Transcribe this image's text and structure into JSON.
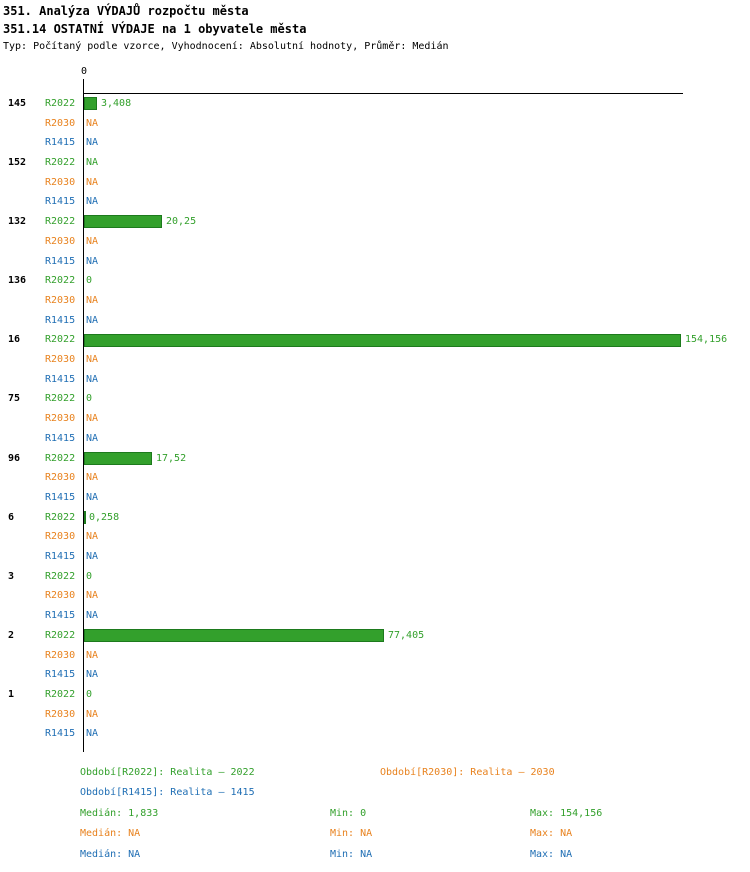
{
  "header": {
    "title_line1": "351. Analýza VÝDAJŮ rozpočtu města",
    "title_line2": "351.14 OSTATNÍ VÝDAJE na 1 obyvatele města",
    "meta_line": "Typ: Počítaný podle vzorce, Vyhodnocení: Absolutní hodnoty, Průměr: Medián"
  },
  "colors": {
    "green": "#33a02c",
    "green_dark": "#1d7a1d",
    "orange": "#e8821e",
    "blue": "#1f6eb4",
    "axis": "#000000",
    "text": "#000000",
    "background": "#ffffff"
  },
  "chart_data": {
    "type": "bar",
    "orientation": "horizontal",
    "title": "351.14 OSTATNÍ VÝDAJE na 1 obyvatele města",
    "value_axis": {
      "zero_label": "0",
      "min": 0,
      "max_value_shown": 154.156
    },
    "grid": false,
    "series": [
      {
        "label": "R2022",
        "color": "green"
      },
      {
        "label": "R2030",
        "color": "orange"
      },
      {
        "label": "R1415",
        "color": "blue"
      }
    ],
    "groups": [
      {
        "label": "145",
        "bars": [
          {
            "series": "R2022",
            "color": "green",
            "value": 3.408,
            "display": "3,408"
          },
          {
            "series": "R2030",
            "color": "orange",
            "value": null,
            "display": "NA"
          },
          {
            "series": "R1415",
            "color": "blue",
            "value": null,
            "display": "NA"
          }
        ]
      },
      {
        "label": "152",
        "bars": [
          {
            "series": "R2022",
            "color": "green",
            "value": null,
            "display": "NA"
          },
          {
            "series": "R2030",
            "color": "orange",
            "value": null,
            "display": "NA"
          },
          {
            "series": "R1415",
            "color": "blue",
            "value": null,
            "display": "NA"
          }
        ]
      },
      {
        "label": "132",
        "bars": [
          {
            "series": "R2022",
            "color": "green",
            "value": 20.25,
            "display": "20,25"
          },
          {
            "series": "R2030",
            "color": "orange",
            "value": null,
            "display": "NA"
          },
          {
            "series": "R1415",
            "color": "blue",
            "value": null,
            "display": "NA"
          }
        ]
      },
      {
        "label": "136",
        "bars": [
          {
            "series": "R2022",
            "color": "green",
            "value": 0,
            "display": "0"
          },
          {
            "series": "R2030",
            "color": "orange",
            "value": null,
            "display": "NA"
          },
          {
            "series": "R1415",
            "color": "blue",
            "value": null,
            "display": "NA"
          }
        ]
      },
      {
        "label": "16",
        "bars": [
          {
            "series": "R2022",
            "color": "green",
            "value": 154.156,
            "display": "154,156"
          },
          {
            "series": "R2030",
            "color": "orange",
            "value": null,
            "display": "NA"
          },
          {
            "series": "R1415",
            "color": "blue",
            "value": null,
            "display": "NA"
          }
        ]
      },
      {
        "label": "75",
        "bars": [
          {
            "series": "R2022",
            "color": "green",
            "value": 0,
            "display": "0"
          },
          {
            "series": "R2030",
            "color": "orange",
            "value": null,
            "display": "NA"
          },
          {
            "series": "R1415",
            "color": "blue",
            "value": null,
            "display": "NA"
          }
        ]
      },
      {
        "label": "96",
        "bars": [
          {
            "series": "R2022",
            "color": "green",
            "value": 17.52,
            "display": "17,52"
          },
          {
            "series": "R2030",
            "color": "orange",
            "value": null,
            "display": "NA"
          },
          {
            "series": "R1415",
            "color": "blue",
            "value": null,
            "display": "NA"
          }
        ]
      },
      {
        "label": "6",
        "bars": [
          {
            "series": "R2022",
            "color": "green",
            "value": 0.258,
            "display": "0,258"
          },
          {
            "series": "R2030",
            "color": "orange",
            "value": null,
            "display": "NA"
          },
          {
            "series": "R1415",
            "color": "blue",
            "value": null,
            "display": "NA"
          }
        ]
      },
      {
        "label": "3",
        "bars": [
          {
            "series": "R2022",
            "color": "green",
            "value": 0,
            "display": "0"
          },
          {
            "series": "R2030",
            "color": "orange",
            "value": null,
            "display": "NA"
          },
          {
            "series": "R1415",
            "color": "blue",
            "value": null,
            "display": "NA"
          }
        ]
      },
      {
        "label": "2",
        "bars": [
          {
            "series": "R2022",
            "color": "green",
            "value": 77.405,
            "display": "77,405"
          },
          {
            "series": "R2030",
            "color": "orange",
            "value": null,
            "display": "NA"
          },
          {
            "series": "R1415",
            "color": "blue",
            "value": null,
            "display": "NA"
          }
        ]
      },
      {
        "label": "1",
        "bars": [
          {
            "series": "R2022",
            "color": "green",
            "value": 0,
            "display": "0"
          },
          {
            "series": "R2030",
            "color": "orange",
            "value": null,
            "display": "NA"
          },
          {
            "series": "R1415",
            "color": "blue",
            "value": null,
            "display": "NA"
          }
        ]
      }
    ]
  },
  "legend": [
    {
      "text": "Období[R2022]: Realita – 2022"
    },
    {
      "text": "Období[R2030]: Realita – 2030"
    },
    {
      "text": "Období[R1415]: Realita – 1415"
    }
  ],
  "stats": [
    {
      "median": "Medián: 1,833",
      "min": "Min: 0",
      "max": "Max: 154,156"
    },
    {
      "median": "Medián: NA",
      "min": "Min: NA",
      "max": "Max: NA"
    },
    {
      "median": "Medián: NA",
      "min": "Min: NA",
      "max": "Max: NA"
    }
  ]
}
